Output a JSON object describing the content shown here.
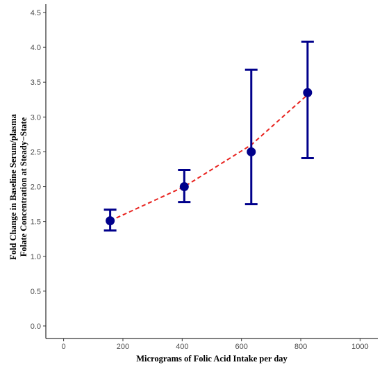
{
  "chart_data": {
    "type": "scatter",
    "xlabel": "Micrograms of Folic Acid Intake per day",
    "ylabel_lines": [
      "Fold Change in Baseline Serum/plasma",
      "Folate Concentration at Steady−State"
    ],
    "xlim": [
      -60,
      1060
    ],
    "ylim": [
      -0.18,
      4.62
    ],
    "x_ticks": [
      0,
      200,
      400,
      600,
      800,
      1000
    ],
    "y_ticks": [
      0.0,
      0.5,
      1.0,
      1.5,
      2.0,
      2.5,
      3.0,
      3.5,
      4.0,
      4.5
    ],
    "x_tick_labels": [
      "0",
      "200",
      "400",
      "600",
      "800",
      "1000"
    ],
    "y_tick_labels": [
      "0.0",
      "0.5",
      "1.0",
      "1.5",
      "2.0",
      "2.5",
      "3.0",
      "3.5",
      "4.0",
      "4.5"
    ],
    "grid": false,
    "points": [
      {
        "x": 157,
        "y": 1.51,
        "ymin": 1.37,
        "ymax": 1.67
      },
      {
        "x": 407,
        "y": 2.0,
        "ymin": 1.78,
        "ymax": 2.24
      },
      {
        "x": 633,
        "y": 2.5,
        "ymin": 1.75,
        "ymax": 3.68
      },
      {
        "x": 823,
        "y": 3.35,
        "ymin": 2.41,
        "ymax": 4.08
      }
    ],
    "fit_line": {
      "x": [
        157,
        407,
        633,
        823
      ],
      "y": [
        1.51,
        2.0,
        2.6,
        3.32
      ]
    },
    "colors": {
      "points": "#00008b",
      "errorbars": "#00008b",
      "fit_line": "#e8231f",
      "axis": "#000000"
    }
  }
}
